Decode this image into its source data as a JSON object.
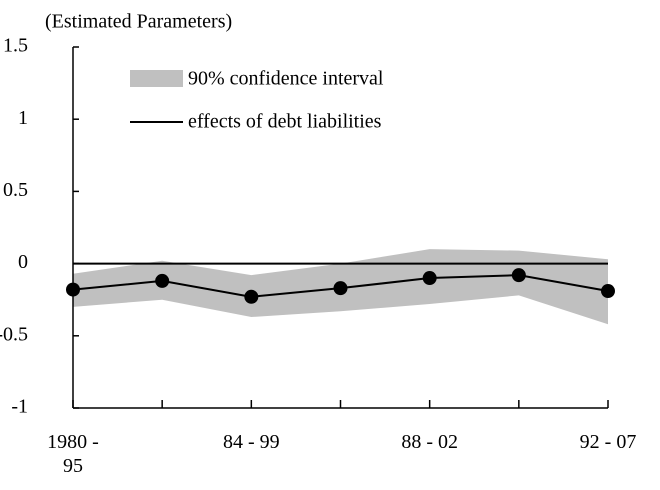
{
  "chart_data": {
    "type": "line_band",
    "ylabel": "(Estimated Parameters)",
    "categories": [
      "1980 - 95",
      null,
      "84 - 99",
      null,
      "88 - 02",
      null,
      "92 - 07"
    ],
    "series": [
      {
        "name": "90% confidence interval",
        "color": "#c0c0c0",
        "upper": [
          -0.07,
          0.02,
          -0.08,
          0.0,
          0.1,
          0.09,
          0.03
        ],
        "lower": [
          -0.3,
          -0.25,
          -0.37,
          -0.33,
          -0.28,
          -0.22,
          -0.42
        ]
      },
      {
        "name": "effects of debt liabilities",
        "color": "#000000",
        "values": [
          -0.18,
          -0.12,
          -0.23,
          -0.17,
          -0.1,
          -0.08,
          -0.19
        ]
      }
    ],
    "ylim": [
      -1,
      1.5
    ],
    "yticks": [
      -1,
      -0.5,
      0,
      0.5,
      1,
      1.5
    ]
  }
}
